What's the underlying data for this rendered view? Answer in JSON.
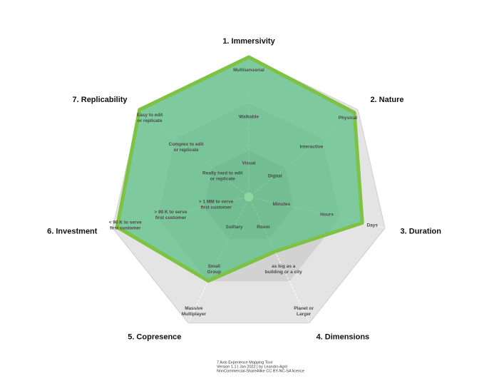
{
  "chart_data": {
    "type": "radar",
    "categories": [
      "1. Immersivity",
      "2. Nature",
      "3. Duration",
      "4. Dimensions",
      "5. Copresence",
      "6. Investment",
      "7. Replicability"
    ],
    "level_labels": [
      [
        "Visual",
        "Walkable",
        "Multisensorial"
      ],
      [
        "Digital",
        "Interactive",
        "Physical"
      ],
      [
        "Minutes",
        "Hours",
        "Days"
      ],
      [
        "Room",
        "as big as a\nbuilding or a city",
        "Planet or\nLarger"
      ],
      [
        "Solitary",
        "Small\nGroup",
        "Massive\nMultiplayer"
      ],
      [
        "> 1 MM to serve\nfirst customer",
        "> 90 K to serve\nfirst customer",
        "< 90 K to serve\nfirst customer"
      ],
      [
        "Really hard to edit\nor replicate",
        "Complex to edit\nor replicate",
        "Easy to edit\nor replicate"
      ]
    ],
    "series": [
      {
        "color": "#7dc242",
        "values": [
          3,
          2.9,
          2.5,
          1.3,
          2,
          2.9,
          3
        ]
      }
    ],
    "ylim": [
      0,
      3
    ],
    "yticks": [
      1,
      2,
      3
    ],
    "footer": [
      "7 Axis Experience Mapping Tool",
      "Version 1.1 | Jan 2022 | by Leandro Agrò",
      "NonCommercial-ShareAlike CC BY-NC-SA licence"
    ]
  }
}
